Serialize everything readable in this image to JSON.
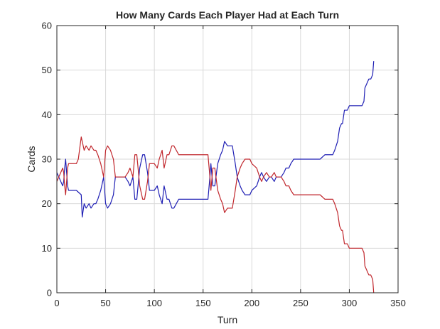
{
  "chart_data": {
    "type": "line",
    "title": "How Many Cards Each Player Had at Each Turn",
    "xlabel": "Turn",
    "ylabel": "Cards",
    "xlim": [
      0,
      350
    ],
    "ylim": [
      0,
      60
    ],
    "xticks": [
      0,
      50,
      100,
      150,
      200,
      250,
      300,
      350
    ],
    "yticks": [
      0,
      10,
      20,
      30,
      40,
      50,
      60
    ],
    "grid": true,
    "legend": "none",
    "colors": {
      "series_1": "#1f1fb4",
      "series_2": "#c0262c",
      "grid": "#d9d9d9",
      "axes": "#262626"
    },
    "series": [
      {
        "color": "#1f1fb4",
        "x": [
          0,
          2,
          4,
          6,
          7,
          8,
          9,
          10,
          11,
          12,
          15,
          20,
          25,
          26,
          28,
          30,
          33,
          35,
          38,
          40,
          42,
          45,
          48,
          50,
          52,
          55,
          58,
          60,
          62,
          65,
          70,
          73,
          75,
          78,
          80,
          82,
          85,
          88,
          90,
          93,
          95,
          97,
          100,
          103,
          105,
          108,
          110,
          113,
          115,
          118,
          120,
          125,
          130,
          135,
          140,
          145,
          150,
          153,
          155,
          157,
          158,
          160,
          162,
          165,
          168,
          170,
          172,
          175,
          178,
          180,
          183,
          185,
          188,
          190,
          193,
          195,
          198,
          200,
          205,
          208,
          210,
          212,
          215,
          218,
          220,
          223,
          225,
          228,
          230,
          233,
          235,
          238,
          240,
          243,
          245,
          248,
          250,
          255,
          260,
          265,
          270,
          275,
          280,
          283,
          285,
          288,
          290,
          292,
          293,
          295,
          297,
          298,
          300,
          305,
          310,
          313,
          315,
          316,
          318,
          320,
          322,
          324,
          325
        ],
        "y": [
          27,
          26,
          25,
          24,
          25,
          28,
          30,
          27,
          24,
          23,
          23,
          23,
          22,
          17,
          20,
          19,
          20,
          19,
          20,
          20,
          21,
          23,
          26,
          20,
          19,
          20,
          22,
          26,
          26,
          26,
          26,
          25,
          24,
          26,
          21,
          21,
          28,
          31,
          31,
          27,
          23,
          23,
          23,
          24,
          22,
          20,
          24,
          21,
          21,
          19,
          19,
          21,
          21,
          21,
          21,
          21,
          21,
          21,
          21,
          26,
          29,
          24,
          24,
          29,
          31,
          32,
          34,
          33,
          33,
          33,
          29,
          26,
          24,
          23,
          22,
          22,
          22,
          23,
          24,
          26,
          27,
          26,
          25,
          26,
          26,
          25,
          26,
          26,
          26,
          27,
          28,
          28,
          29,
          30,
          30,
          30,
          30,
          30,
          30,
          30,
          30,
          31,
          31,
          31,
          32,
          34,
          37,
          38,
          38,
          41,
          41,
          41,
          42,
          42,
          42,
          42,
          43,
          46,
          47,
          48,
          48,
          49,
          52
        ]
      },
      {
        "color": "#c0262c",
        "x": [
          0,
          2,
          4,
          6,
          7,
          8,
          9,
          10,
          11,
          12,
          15,
          20,
          22,
          25,
          28,
          30,
          33,
          35,
          38,
          40,
          42,
          45,
          48,
          50,
          52,
          55,
          58,
          60,
          62,
          65,
          70,
          73,
          75,
          78,
          80,
          82,
          85,
          88,
          90,
          93,
          95,
          97,
          100,
          103,
          105,
          108,
          110,
          113,
          115,
          118,
          120,
          125,
          130,
          135,
          140,
          145,
          150,
          153,
          155,
          157,
          158,
          160,
          162,
          165,
          168,
          170,
          172,
          175,
          178,
          180,
          183,
          185,
          188,
          190,
          193,
          195,
          198,
          200,
          205,
          208,
          210,
          212,
          215,
          218,
          220,
          223,
          225,
          228,
          230,
          233,
          235,
          238,
          240,
          243,
          245,
          248,
          250,
          255,
          260,
          265,
          270,
          275,
          280,
          283,
          285,
          288,
          290,
          292,
          293,
          295,
          297,
          298,
          300,
          305,
          310,
          313,
          315,
          316,
          318,
          320,
          322,
          324,
          325
        ],
        "y": [
          25,
          26,
          27,
          28,
          27,
          24,
          22,
          25,
          28,
          29,
          29,
          29,
          30,
          35,
          32,
          33,
          32,
          33,
          32,
          32,
          31,
          29,
          26,
          32,
          33,
          32,
          30,
          26,
          26,
          26,
          26,
          27,
          28,
          26,
          31,
          31,
          24,
          21,
          21,
          25,
          29,
          29,
          29,
          28,
          30,
          32,
          28,
          31,
          31,
          33,
          33,
          31,
          31,
          31,
          31,
          31,
          31,
          31,
          31,
          26,
          23,
          28,
          28,
          23,
          21,
          20,
          18,
          19,
          19,
          19,
          23,
          26,
          28,
          29,
          30,
          30,
          30,
          29,
          28,
          26,
          25,
          26,
          27,
          26,
          26,
          27,
          26,
          26,
          26,
          25,
          24,
          24,
          23,
          22,
          22,
          22,
          22,
          22,
          22,
          22,
          22,
          21,
          21,
          21,
          20,
          18,
          15,
          14,
          14,
          11,
          11,
          11,
          10,
          10,
          10,
          10,
          9,
          6,
          5,
          4,
          4,
          3,
          0
        ]
      }
    ]
  }
}
